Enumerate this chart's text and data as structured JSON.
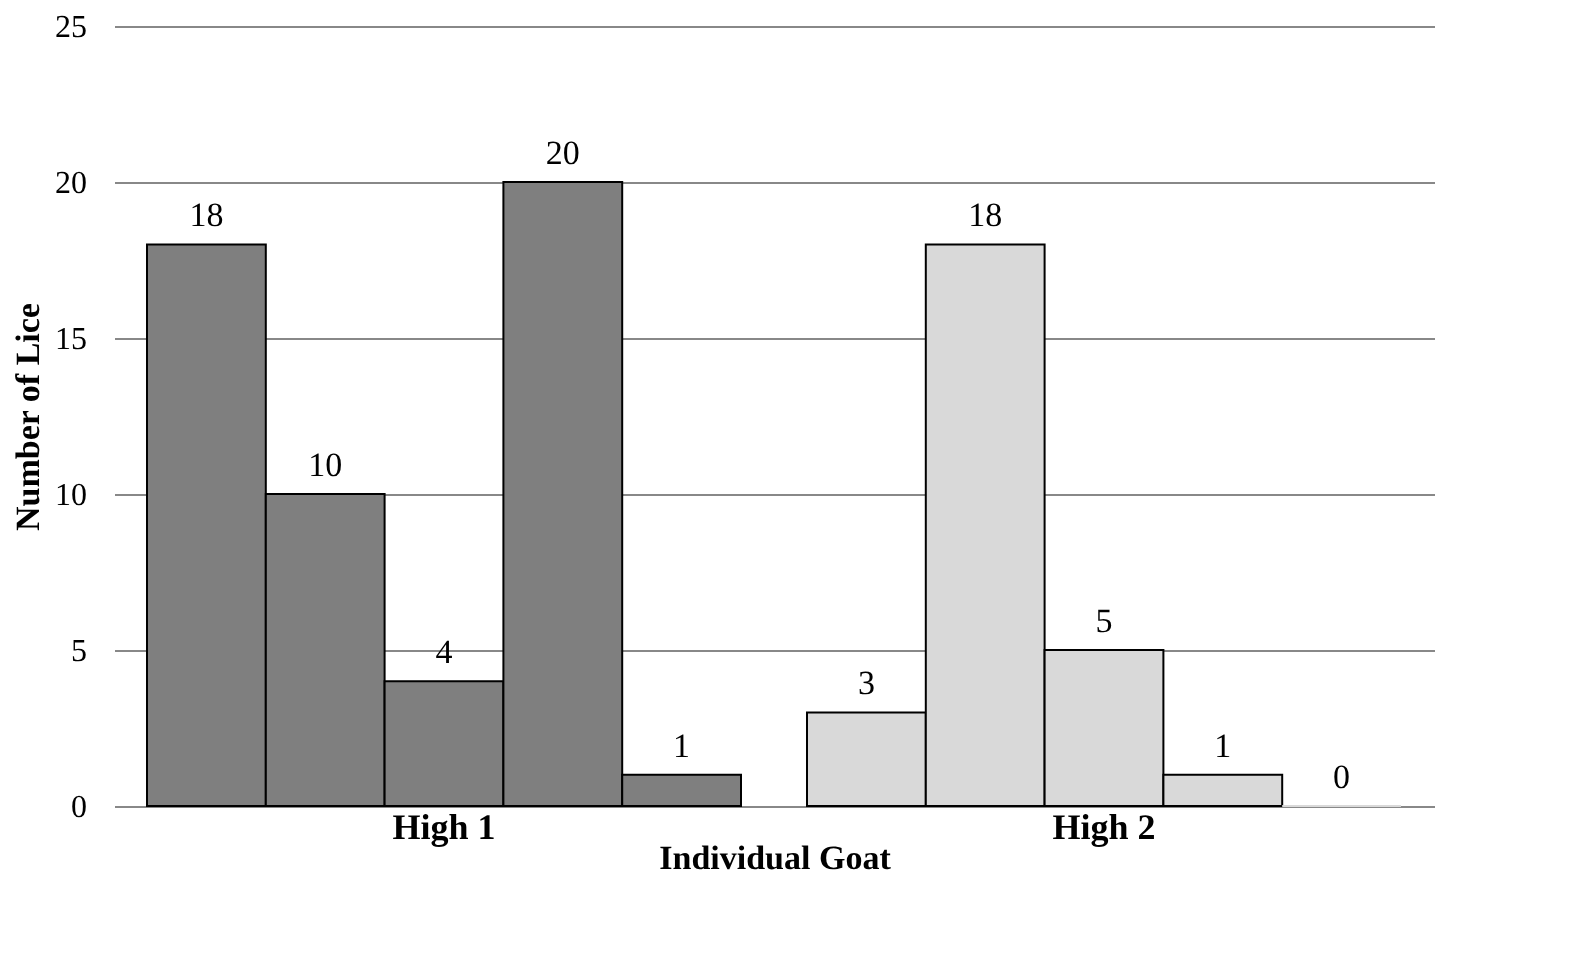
{
  "chart_data": {
    "type": "bar",
    "xlabel": "Individual Goat",
    "ylabel": "Number of Lice",
    "categories": [
      "High 1",
      "High 2"
    ],
    "series": [
      {
        "colors": [
          "#7f7f7f",
          "#d9d9d9"
        ],
        "values": [
          18,
          3
        ]
      },
      {
        "colors": [
          "#7f7f7f",
          "#d9d9d9"
        ],
        "values": [
          10,
          18
        ]
      },
      {
        "colors": [
          "#7f7f7f",
          "#d9d9d9"
        ],
        "values": [
          4,
          5
        ]
      },
      {
        "colors": [
          "#7f7f7f",
          "#d9d9d9"
        ],
        "values": [
          20,
          1
        ]
      },
      {
        "colors": [
          "#7f7f7f",
          "#d9d9d9"
        ],
        "values": [
          1,
          0
        ]
      }
    ],
    "ylim": [
      0,
      25
    ],
    "yticks": [
      0,
      5,
      10,
      15,
      20,
      25
    ],
    "grid": "y",
    "data_labels": true
  }
}
